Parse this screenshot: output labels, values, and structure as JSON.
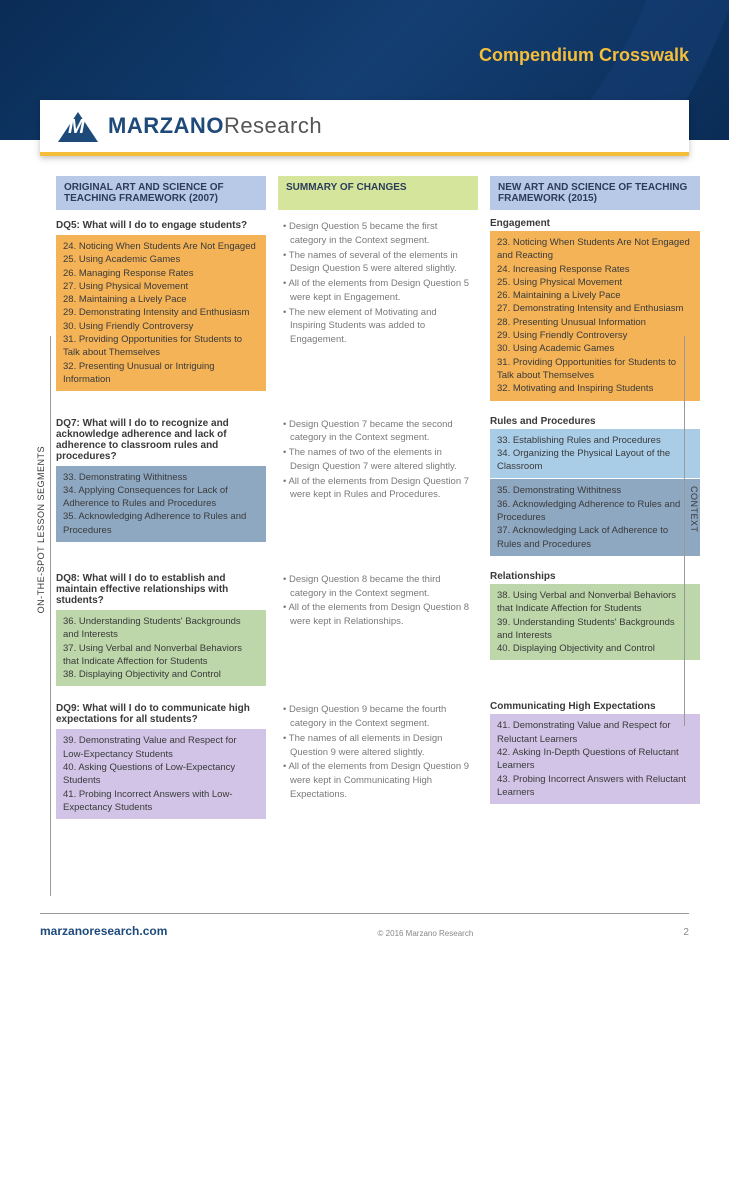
{
  "docTitle": "Compendium Crosswalk",
  "logo": {
    "brand": "MARZANO",
    "suffix": "Research"
  },
  "headers": {
    "c1": "ORIGINAL ART AND SCIENCE OF TEACHING FRAMEWORK (2007)",
    "c2": "SUMMARY OF CHANGES",
    "c3": "NEW ART AND SCIENCE OF TEACHING FRAMEWORK (2015)"
  },
  "vLabelLeft": "ON-THE-SPOT LESSON SEGMENTS",
  "vLabelRight": "CONTEXT",
  "rows": [
    {
      "dq": "DQ5: What will I do to engage students?",
      "leftItems": [
        "24. Noticing When Students Are Not Engaged",
        "25. Using Academic Games",
        "26. Managing Response Rates",
        "27. Using Physical Movement",
        "28. Maintaining a Lively Pace",
        "29. Demonstrating Intensity and Enthusiasm",
        "30. Using Friendly Controversy",
        "31. Providing Opportunities for Students to Talk about Themselves",
        "32. Presenting Unusual or Intriguing Information"
      ],
      "leftColor": "orange",
      "bullets": [
        "Design Question 5 became the first category in the Context segment.",
        "The names of several of the elements in Design Question 5 were altered slightly.",
        "All of the elements from Design Question 5 were kept in Engagement.",
        "The new element of Motivating and Inspiring Students was added to Engagement."
      ],
      "cat": "Engagement",
      "rightBoxes": [
        {
          "color": "orange",
          "items": [
            "23. Noticing When Students Are Not Engaged and Reacting",
            "24. Increasing Response Rates",
            "25. Using Physical Movement",
            "26. Maintaining a Lively Pace",
            "27. Demonstrating Intensity and Enthusiasm",
            "28. Presenting Unusual Information",
            "29. Using Friendly Controversy",
            "30. Using Academic Games",
            "31. Providing Opportunities for Students to Talk about Themselves",
            "32. Motivating and Inspiring Students"
          ]
        }
      ]
    },
    {
      "dq": "DQ7: What will I do to recognize and acknowledge adherence and lack of adherence to classroom rules and procedures?",
      "leftItems": [
        "33. Demonstrating Withitness",
        "34. Applying Consequences for Lack of Adherence to Rules and Procedures",
        "35. Acknowledging Adherence to Rules and Procedures"
      ],
      "leftColor": "blue-m",
      "bullets": [
        "Design Question 7 became the second category in the Context segment.",
        "The names of two of the elements in Design Question 7 were altered slightly.",
        "All of the elements from Design Question 7 were kept in Rules and Procedures."
      ],
      "cat": "Rules and Procedures",
      "rightBoxes": [
        {
          "color": "blue-l",
          "items": [
            "33. Establishing Rules and Procedures",
            "34. Organizing the Physical Layout of the Classroom"
          ]
        },
        {
          "color": "blue-m",
          "items": [
            "35. Demonstrating Withitness",
            "36. Acknowledging Adherence to Rules and Procedures",
            "37. Acknowledging Lack of Adherence to Rules and Procedures"
          ]
        }
      ]
    },
    {
      "dq": "DQ8: What will I do to establish and maintain effective relationships with students?",
      "leftItems": [
        "36. Understanding Students' Backgrounds and Interests",
        "37. Using Verbal and Nonverbal Behaviors that Indicate Affection for Students",
        "38. Displaying Objectivity and Control"
      ],
      "leftColor": "green",
      "bullets": [
        "Design Question 8 became the third category in the Context segment.",
        "All of the elements from Design Question 8 were kept in Relationships."
      ],
      "cat": "Relationships",
      "rightBoxes": [
        {
          "color": "green",
          "items": [
            "38. Using Verbal and Nonverbal Behaviors that Indicate Affection for Students",
            "39. Understanding Students' Backgrounds and Interests",
            "40. Displaying Objectivity and Control"
          ]
        }
      ]
    },
    {
      "dq": "DQ9: What will I do to communicate high expectations for all students?",
      "leftItems": [
        "39. Demonstrating Value and Respect for Low-Expectancy Students",
        "40. Asking Questions of Low-Expectancy Students",
        "41. Probing Incorrect Answers with Low-Expectancy Students"
      ],
      "leftColor": "purple",
      "bullets": [
        "Design Question 9 became the fourth category in the Context segment.",
        "The names of all elements in Design Question 9 were altered slightly.",
        "All of the elements from Design Question 9 were kept in Communicating High Expectations."
      ],
      "cat": "Communicating High Expectations",
      "rightBoxes": [
        {
          "color": "purple",
          "items": [
            "41. Demonstrating Value and Respect for Reluctant Learners",
            "42. Asking In-Depth Questions of Reluctant Learners",
            "43. Probing Incorrect Answers with Reluctant Learners"
          ]
        }
      ]
    }
  ],
  "footer": {
    "url": "marzanoresearch.com",
    "copy": "© 2016 Marzano Research",
    "page": "2"
  }
}
